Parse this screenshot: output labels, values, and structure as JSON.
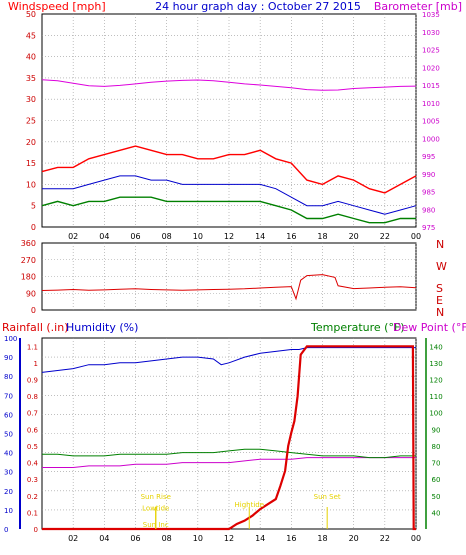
{
  "header": {
    "left": "Windspeed [mph]",
    "center": "24 hour graph day : October 27 2015",
    "right": "Barometer [mb]"
  },
  "colors": {
    "wind_red": "#ff0000",
    "wind_blue": "#0000cc",
    "wind_green": "#008000",
    "baro": "#dd00dd",
    "dir": "#dd0000",
    "humidity": "#0000cc",
    "temperature": "#008000",
    "dewpoint": "#cc00cc",
    "rain": "#dd0000",
    "sun": "#e6d200",
    "grid": "#999999"
  },
  "x_ticks": [
    "02",
    "04",
    "06",
    "08",
    "10",
    "12",
    "14",
    "16",
    "18",
    "20",
    "22",
    "00"
  ],
  "chart_data": [
    {
      "type": "line",
      "name": "wind-barometer",
      "ylabel_left": "Windspeed [mph]",
      "ylabel_right": "Barometer [mb]",
      "ylim_left": [
        0,
        50
      ],
      "ylim_right": [
        975,
        1035
      ],
      "yticks_left": [
        "0",
        "5",
        "10",
        "15",
        "20",
        "25",
        "30",
        "35",
        "40",
        "45",
        "50"
      ],
      "yticks_right": [
        "975",
        "980",
        "985",
        "990",
        "995",
        "1000",
        "1005",
        "1010",
        "1015",
        "1020",
        "1025",
        "1030",
        "1035"
      ],
      "grid": true,
      "series": [
        {
          "key": "gust",
          "x": [
            0,
            1,
            2,
            3,
            4,
            5,
            6,
            7,
            8,
            9,
            10,
            11,
            12,
            13,
            14,
            15,
            16,
            17,
            18,
            19,
            20,
            21,
            22,
            23,
            24
          ],
          "values": [
            13,
            14,
            14,
            16,
            17,
            18,
            19,
            18,
            17,
            17,
            16,
            16,
            17,
            17,
            18,
            16,
            15,
            11,
            10,
            12,
            11,
            9,
            8,
            10,
            12
          ]
        },
        {
          "key": "average",
          "x": [
            0,
            1,
            2,
            3,
            4,
            5,
            6,
            7,
            8,
            9,
            10,
            11,
            12,
            13,
            14,
            15,
            16,
            17,
            18,
            19,
            20,
            21,
            22,
            23,
            24
          ],
          "values": [
            9,
            9,
            9,
            10,
            11,
            12,
            12,
            11,
            11,
            10,
            10,
            10,
            10,
            10,
            10,
            9,
            7,
            5,
            5,
            6,
            5,
            4,
            3,
            4,
            5
          ]
        },
        {
          "key": "low",
          "x": [
            0,
            1,
            2,
            3,
            4,
            5,
            6,
            7,
            8,
            9,
            10,
            11,
            12,
            13,
            14,
            15,
            16,
            17,
            18,
            19,
            20,
            21,
            22,
            23,
            24
          ],
          "values": [
            5,
            6,
            5,
            6,
            6,
            7,
            7,
            7,
            6,
            6,
            6,
            6,
            6,
            6,
            6,
            5,
            4,
            2,
            2,
            3,
            2,
            1,
            1,
            2,
            2
          ]
        },
        {
          "key": "barometer",
          "x": [
            0,
            1,
            2,
            3,
            4,
            5,
            6,
            7,
            8,
            9,
            10,
            11,
            12,
            13,
            14,
            15,
            16,
            17,
            18,
            19,
            20,
            21,
            22,
            23,
            24
          ],
          "values": [
            1016.5,
            1016.2,
            1015.5,
            1014.8,
            1014.6,
            1014.9,
            1015.3,
            1015.8,
            1016.1,
            1016.3,
            1016.4,
            1016.2,
            1015.8,
            1015.3,
            1015.0,
            1014.6,
            1014.2,
            1013.7,
            1013.5,
            1013.6,
            1014.0,
            1014.2,
            1014.4,
            1014.6,
            1014.7
          ]
        }
      ]
    },
    {
      "type": "line",
      "name": "wind-direction",
      "ylim": [
        0,
        360
      ],
      "yticks": [
        "0",
        "90",
        "180",
        "270",
        "360"
      ],
      "compass_labels": [
        "N",
        "W",
        "S",
        "E",
        "N"
      ],
      "grid": true,
      "series": [
        {
          "key": "direction",
          "x": [
            0,
            1,
            2,
            3,
            4,
            5,
            6,
            7,
            8,
            9,
            10,
            11,
            12,
            13,
            14,
            15,
            16,
            16.3,
            16.6,
            17,
            18,
            18.8,
            19,
            20,
            21,
            22,
            23,
            24
          ],
          "values": [
            105,
            107,
            110,
            106,
            108,
            112,
            114,
            110,
            108,
            106,
            108,
            110,
            112,
            114,
            118,
            122,
            126,
            60,
            160,
            185,
            190,
            175,
            130,
            115,
            118,
            122,
            125,
            120
          ]
        }
      ]
    },
    {
      "type": "line",
      "name": "rain-humidity-temperature",
      "ylabel_left": "Rainfall (.in)",
      "ylabel_left2": "Humidity (%)",
      "ylabel_right": "Temperature (°F)",
      "ylabel_right2": "Dew Point (°F)",
      "ylim_rain": [
        0,
        1.15
      ],
      "ylim_humidity": [
        0,
        100
      ],
      "ylim_temp": [
        30,
        145
      ],
      "yticks_humidity": [
        "0",
        "10",
        "20",
        "30",
        "40",
        "50",
        "60",
        "70",
        "80",
        "90",
        "100"
      ],
      "yticks_rain": [
        "0",
        "0.1",
        "0.2",
        "0.3",
        "0.4",
        "0.5",
        "0.6",
        "0.7",
        "0.8",
        "0.9",
        "1",
        "1.1"
      ],
      "yticks_temp": [
        "40",
        "50",
        "60",
        "70",
        "80",
        "90",
        "100",
        "110",
        "120",
        "130",
        "140"
      ],
      "grid": true,
      "series": [
        {
          "key": "humidity",
          "x": [
            0,
            1,
            2,
            3,
            4,
            5,
            6,
            7,
            8,
            9,
            10,
            11,
            11.5,
            12,
            13,
            14,
            15,
            16,
            16.5,
            17,
            18,
            19,
            20,
            21,
            22,
            23,
            24
          ],
          "values": [
            82,
            83,
            84,
            86,
            86,
            87,
            87,
            88,
            89,
            90,
            90,
            89,
            86,
            87,
            90,
            92,
            93,
            94,
            94,
            95,
            95,
            95,
            95,
            95,
            95,
            95,
            95
          ]
        },
        {
          "key": "temperature",
          "x": [
            0,
            1,
            2,
            3,
            4,
            5,
            6,
            7,
            8,
            9,
            10,
            11,
            12,
            13,
            14,
            15,
            16,
            17,
            18,
            19,
            20,
            21,
            22,
            23,
            24
          ],
          "values": [
            75,
            75,
            74,
            74,
            74,
            75,
            75,
            75,
            75,
            76,
            76,
            76,
            77,
            78,
            78,
            77,
            76,
            75,
            74,
            74,
            74,
            73,
            73,
            74,
            74
          ]
        },
        {
          "key": "dewpoint",
          "x": [
            0,
            1,
            2,
            3,
            4,
            5,
            6,
            7,
            8,
            9,
            10,
            11,
            12,
            13,
            14,
            15,
            16,
            17,
            18,
            19,
            20,
            21,
            22,
            23,
            24
          ],
          "values": [
            67,
            67,
            67,
            68,
            68,
            68,
            69,
            69,
            69,
            70,
            70,
            70,
            70,
            71,
            72,
            72,
            72,
            73,
            73,
            73,
            73,
            73,
            73,
            73,
            73
          ]
        },
        {
          "key": "rain",
          "x": [
            0,
            11,
            12,
            12.5,
            13,
            13.5,
            14,
            14.5,
            15,
            15.3,
            15.6,
            15.8,
            16,
            16.2,
            16.4,
            16.6,
            17,
            20,
            23,
            23.8,
            23.85,
            24
          ],
          "values": [
            0,
            0,
            0,
            0.03,
            0.05,
            0.08,
            0.12,
            0.15,
            0.18,
            0.26,
            0.35,
            0.5,
            0.58,
            0.65,
            0.8,
            1.05,
            1.1,
            1.1,
            1.1,
            1.1,
            0,
            0
          ]
        }
      ],
      "annotations": [
        {
          "text": "Lowtide",
          "x": 7.3,
          "y": 0.1
        },
        {
          "text": "Sun Rise",
          "x": 7.3,
          "y": 0.17
        },
        {
          "text": "Sun Inc",
          "x": 7.3,
          "y": 0.0
        },
        {
          "text": "Hightide",
          "x": 13.3,
          "y": 0.12
        },
        {
          "text": "Sun Set",
          "x": 18.3,
          "y": 0.17
        }
      ]
    }
  ]
}
